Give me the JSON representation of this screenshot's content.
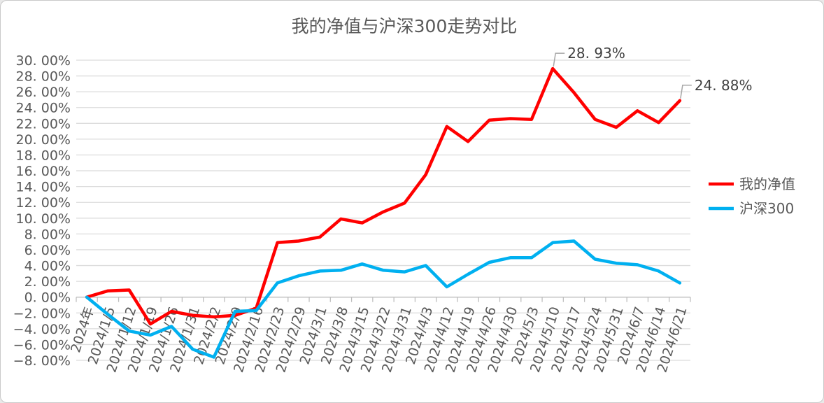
{
  "chart_data": {
    "type": "line",
    "title": "我的净值与沪深300走势对比",
    "categories": [
      "2024年",
      "2024/1/5",
      "2024/1/12",
      "2024/1/19",
      "2024/1/26",
      "2024/1/31",
      "2024/2/2",
      "2024/2/9",
      "2024/2/16",
      "2024/2/23",
      "2024/2/29",
      "2024/3/1",
      "2024/3/8",
      "2024/3/15",
      "2024/3/22",
      "2024/3/31",
      "2024/4/3",
      "2024/4/12",
      "2024/4/19",
      "2024/4/26",
      "2024/4/30",
      "2024/5/3",
      "2024/5/10",
      "2024/5/17",
      "2024/5/24",
      "2024/5/31",
      "2024/6/7",
      "2024/6/14",
      "2024/6/21"
    ],
    "series": [
      {
        "name": "我的净值",
        "color": "#FF0000",
        "values": [
          0.0,
          0.8,
          0.9,
          -3.4,
          -1.8,
          -2.3,
          -2.5,
          -2.3,
          -1.4,
          6.9,
          7.1,
          7.6,
          9.9,
          9.4,
          10.8,
          11.9,
          15.5,
          21.6,
          19.7,
          22.4,
          22.6,
          22.5,
          28.93,
          25.9,
          22.5,
          21.5,
          23.6,
          22.1,
          24.88
        ]
      },
      {
        "name": "沪深300",
        "color": "#00B0F0",
        "values": [
          0.0,
          -2.2,
          -4.3,
          -4.8,
          -3.7,
          -6.6,
          -7.6,
          -1.8,
          -1.7,
          1.8,
          2.7,
          3.3,
          3.4,
          4.2,
          3.4,
          3.2,
          4.0,
          1.3,
          2.9,
          4.4,
          5.0,
          5.0,
          6.9,
          7.1,
          4.8,
          4.3,
          4.1,
          3.3,
          1.8
        ]
      }
    ],
    "y_axis": {
      "min": -8,
      "max": 30,
      "step": 2,
      "tick_labels": [
        "30. 00%",
        "28. 00%",
        "26. 00%",
        "24. 00%",
        "22. 00%",
        "20. 00%",
        "18. 00%",
        "16. 00%",
        "14. 00%",
        "12. 00%",
        "10. 00%",
        "8. 00%",
        "6. 00%",
        "4. 00%",
        "2. 00%",
        "0. 00%",
        "−2. 00%",
        "−4. 00%",
        "−6. 00%",
        "−8. 00%"
      ]
    },
    "grid": true,
    "legend_position": "right",
    "annotations": [
      {
        "label": "28. 93%",
        "category": "2024/5/10",
        "value": 28.93
      },
      {
        "label": "24. 88%",
        "category": "2024/6/21",
        "value": 24.88
      }
    ],
    "colors": {
      "gridline": "#DCDCDC",
      "axis": "#BFBFBF",
      "text": "#595959",
      "annotation_text": "#404040",
      "annotation_leader": "#A6A6A6"
    }
  }
}
